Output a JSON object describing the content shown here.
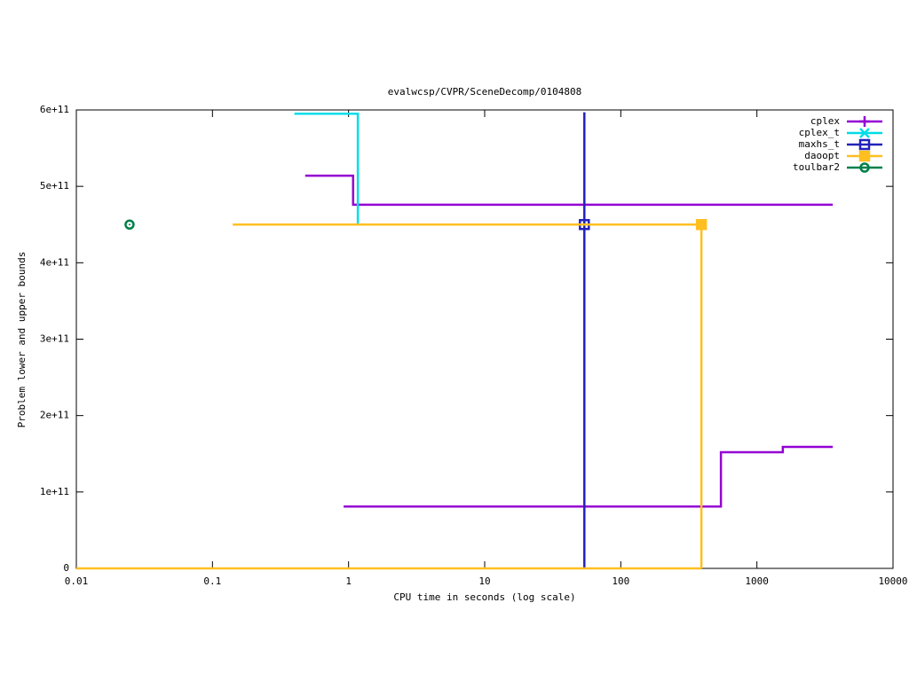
{
  "chart_data": {
    "type": "line",
    "title": "evalwcsp/CVPR/SceneDecomp/0104808",
    "x_label": "CPU time in seconds (log scale)",
    "y_label": "Problem lower and upper bounds",
    "xlog": true,
    "xlim": [
      0.01,
      10000
    ],
    "xticks": [
      0.01,
      0.1,
      1,
      10,
      100,
      1000,
      10000
    ],
    "ylim": [
      0,
      600000000000
    ],
    "yticks": [
      0,
      {
        "value": 100000000000,
        "label": "1e+11"
      },
      {
        "value": 200000000000,
        "label": "2e+11"
      },
      {
        "value": 300000000000,
        "label": "3e+11"
      },
      {
        "value": 400000000000,
        "label": "4e+11"
      },
      {
        "value": 500000000000,
        "label": "5e+11"
      },
      {
        "value": 600000000000,
        "label": "6e+11"
      }
    ],
    "legend": "top-right",
    "series": [
      {
        "name": "cplex",
        "color": "#9400d3",
        "point_type": "plus",
        "x": [
          0.48,
          1.08,
          1.08,
          3610,
          null,
          0.92,
          544,
          544,
          1550,
          1550,
          3610
        ],
        "values": [
          514000000000,
          514000000000,
          476000000000,
          476000000000,
          null,
          81000000000,
          81000000000,
          152000000000,
          152000000000,
          159000000000,
          159000000000
        ]
      },
      {
        "name": "cplex_t",
        "color": "#00dde8",
        "point_type": "cross",
        "x": [
          0.4,
          1.17,
          1.17
        ],
        "values": [
          595000000000,
          595000000000,
          451000000000
        ]
      },
      {
        "name": "maxhs_t",
        "color": "#2222bb",
        "point_type": "square-open",
        "x": [
          54,
          54
        ],
        "values": [
          0,
          597000000000
        ],
        "marker_x": 54,
        "marker_y": 450000000000
      },
      {
        "name": "daoopt",
        "color": "#ffbf20",
        "point_type": "square-filled",
        "x": [
          0.141,
          391,
          391,
          null,
          0.01,
          391
        ],
        "values": [
          450000000000,
          450000000000,
          0,
          null,
          0,
          0
        ],
        "marker_x": 391,
        "marker_y": 450000000000
      },
      {
        "name": "toulbar2",
        "color": "#00804a",
        "point_type": "circle-dot",
        "x": [],
        "values": [],
        "marker_x": 0.0246,
        "marker_y": 450000000000
      }
    ]
  }
}
